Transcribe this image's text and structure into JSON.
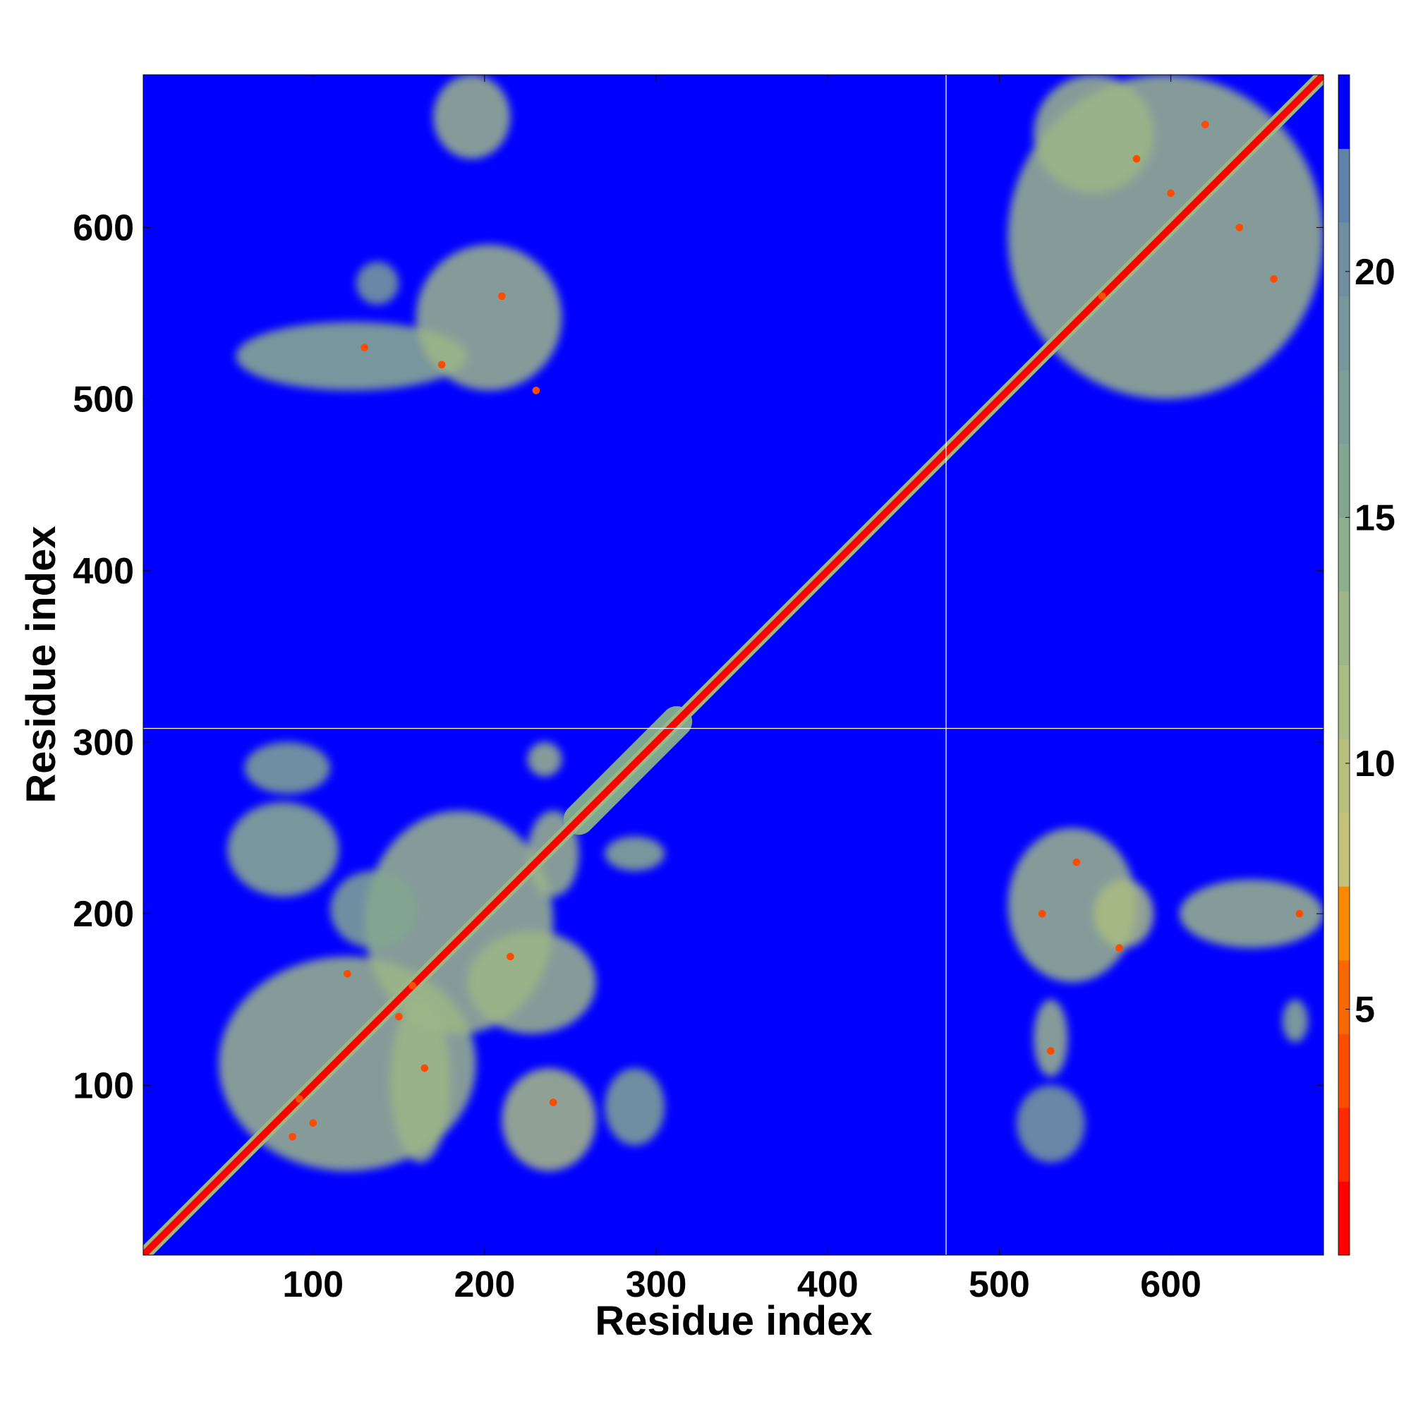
{
  "chart_data": {
    "type": "heatmap",
    "title": "",
    "xlabel": "Residue index",
    "ylabel": "Residue index",
    "xlim": [
      1,
      689
    ],
    "ylim": [
      1,
      689
    ],
    "xticks": [
      100,
      200,
      300,
      400,
      500,
      600
    ],
    "yticks": [
      100,
      200,
      300,
      400,
      500,
      600
    ],
    "chain_boundaries": [
      {
        "axis": "x",
        "value": 469
      },
      {
        "axis": "y",
        "value": 308
      }
    ],
    "colorbar": {
      "range": [
        0,
        24
      ],
      "ticks": [
        5,
        10,
        15,
        20
      ],
      "levels": [
        {
          "from": 0,
          "to": 1.5,
          "color": "#ff0000"
        },
        {
          "from": 1.5,
          "to": 3,
          "color": "#fd2a00"
        },
        {
          "from": 3,
          "to": 4.5,
          "color": "#fb4c00"
        },
        {
          "from": 4.5,
          "to": 6,
          "color": "#f96800"
        },
        {
          "from": 6,
          "to": 7.5,
          "color": "#f98a00"
        },
        {
          "from": 7.5,
          "to": 9,
          "color": "#c3c27a"
        },
        {
          "from": 9,
          "to": 10.5,
          "color": "#b7c07e"
        },
        {
          "from": 10.5,
          "to": 12,
          "color": "#a9bc82"
        },
        {
          "from": 12,
          "to": 13.5,
          "color": "#9cb687"
        },
        {
          "from": 13.5,
          "to": 15,
          "color": "#8eaf8c"
        },
        {
          "from": 15,
          "to": 16.5,
          "color": "#82a791"
        },
        {
          "from": 16.5,
          "to": 18,
          "color": "#7b9f96"
        },
        {
          "from": 18,
          "to": 19.5,
          "color": "#76979b"
        },
        {
          "from": 19.5,
          "to": 21,
          "color": "#6f8fa0"
        },
        {
          "from": 21,
          "to": 22.5,
          "color": "#5f83a8"
        },
        {
          "from": 22.5,
          "to": 24,
          "color": "#0000ff"
        }
      ]
    },
    "background_value": 24,
    "diagonal": [
      {
        "from": 1,
        "to": 689,
        "width": 4,
        "value": 1
      },
      {
        "from": 1,
        "to": 689,
        "width": 8,
        "value": 13
      },
      {
        "from": 255,
        "to": 312,
        "width": 18,
        "value": 15
      }
    ],
    "contact_regions": [
      {
        "x": [
          45,
          195
        ],
        "y": [
          50,
          175
        ],
        "value": 12
      },
      {
        "x": [
          130,
          240
        ],
        "y": [
          130,
          260
        ],
        "value": 12
      },
      {
        "x": [
          50,
          115
        ],
        "y": [
          210,
          265
        ],
        "value": 14
      },
      {
        "x": [
          60,
          110
        ],
        "y": [
          270,
          300
        ],
        "value": 16
      },
      {
        "x": [
          110,
          160
        ],
        "y": [
          180,
          225
        ],
        "value": 15
      },
      {
        "x": [
          145,
          180
        ],
        "y": [
          55,
          150
        ],
        "value": 12
      },
      {
        "x": [
          190,
          265
        ],
        "y": [
          130,
          190
        ],
        "value": 13
      },
      {
        "x": [
          210,
          265
        ],
        "y": [
          50,
          110
        ],
        "value": 11
      },
      {
        "x": [
          270,
          305
        ],
        "y": [
          65,
          110
        ],
        "value": 16
      },
      {
        "x": [
          270,
          305
        ],
        "y": [
          225,
          245
        ],
        "value": 14
      },
      {
        "x": [
          225,
          245
        ],
        "y": [
          280,
          300
        ],
        "value": 13
      },
      {
        "x": [
          225,
          255
        ],
        "y": [
          210,
          260
        ],
        "value": 13
      },
      {
        "x": [
          55,
          190
        ],
        "y": [
          505,
          545
        ],
        "value": 14
      },
      {
        "x": [
          160,
          245
        ],
        "y": [
          505,
          590
        ],
        "value": 12
      },
      {
        "x": [
          170,
          215
        ],
        "y": [
          640,
          689
        ],
        "value": 13
      },
      {
        "x": [
          125,
          150
        ],
        "y": [
          555,
          580
        ],
        "value": 17
      },
      {
        "x": [
          505,
          580
        ],
        "y": [
          160,
          250
        ],
        "value": 12
      },
      {
        "x": [
          555,
          590
        ],
        "y": [
          180,
          220
        ],
        "value": 11
      },
      {
        "x": [
          605,
          689
        ],
        "y": [
          180,
          220
        ],
        "value": 13
      },
      {
        "x": [
          520,
          540
        ],
        "y": [
          105,
          150
        ],
        "value": 13
      },
      {
        "x": [
          510,
          550
        ],
        "y": [
          55,
          100
        ],
        "value": 17
      },
      {
        "x": [
          665,
          680
        ],
        "y": [
          125,
          150
        ],
        "value": 14
      },
      {
        "x": [
          505,
          689
        ],
        "y": [
          500,
          689
        ],
        "value": 13
      },
      {
        "x": [
          520,
          590
        ],
        "y": [
          620,
          689
        ],
        "value": 13
      }
    ],
    "hotspots": [
      {
        "x": 92,
        "y": 92
      },
      {
        "x": 100,
        "y": 78
      },
      {
        "x": 88,
        "y": 70
      },
      {
        "x": 158,
        "y": 158
      },
      {
        "x": 150,
        "y": 140
      },
      {
        "x": 165,
        "y": 110
      },
      {
        "x": 120,
        "y": 165
      },
      {
        "x": 215,
        "y": 175
      },
      {
        "x": 240,
        "y": 90
      },
      {
        "x": 175,
        "y": 520
      },
      {
        "x": 210,
        "y": 560
      },
      {
        "x": 230,
        "y": 505
      },
      {
        "x": 130,
        "y": 530
      },
      {
        "x": 525,
        "y": 200
      },
      {
        "x": 545,
        "y": 230
      },
      {
        "x": 570,
        "y": 180
      },
      {
        "x": 530,
        "y": 120
      },
      {
        "x": 560,
        "y": 560
      },
      {
        "x": 600,
        "y": 620
      },
      {
        "x": 640,
        "y": 600
      },
      {
        "x": 580,
        "y": 640
      },
      {
        "x": 660,
        "y": 570
      },
      {
        "x": 620,
        "y": 660
      },
      {
        "x": 675,
        "y": 200
      }
    ]
  }
}
